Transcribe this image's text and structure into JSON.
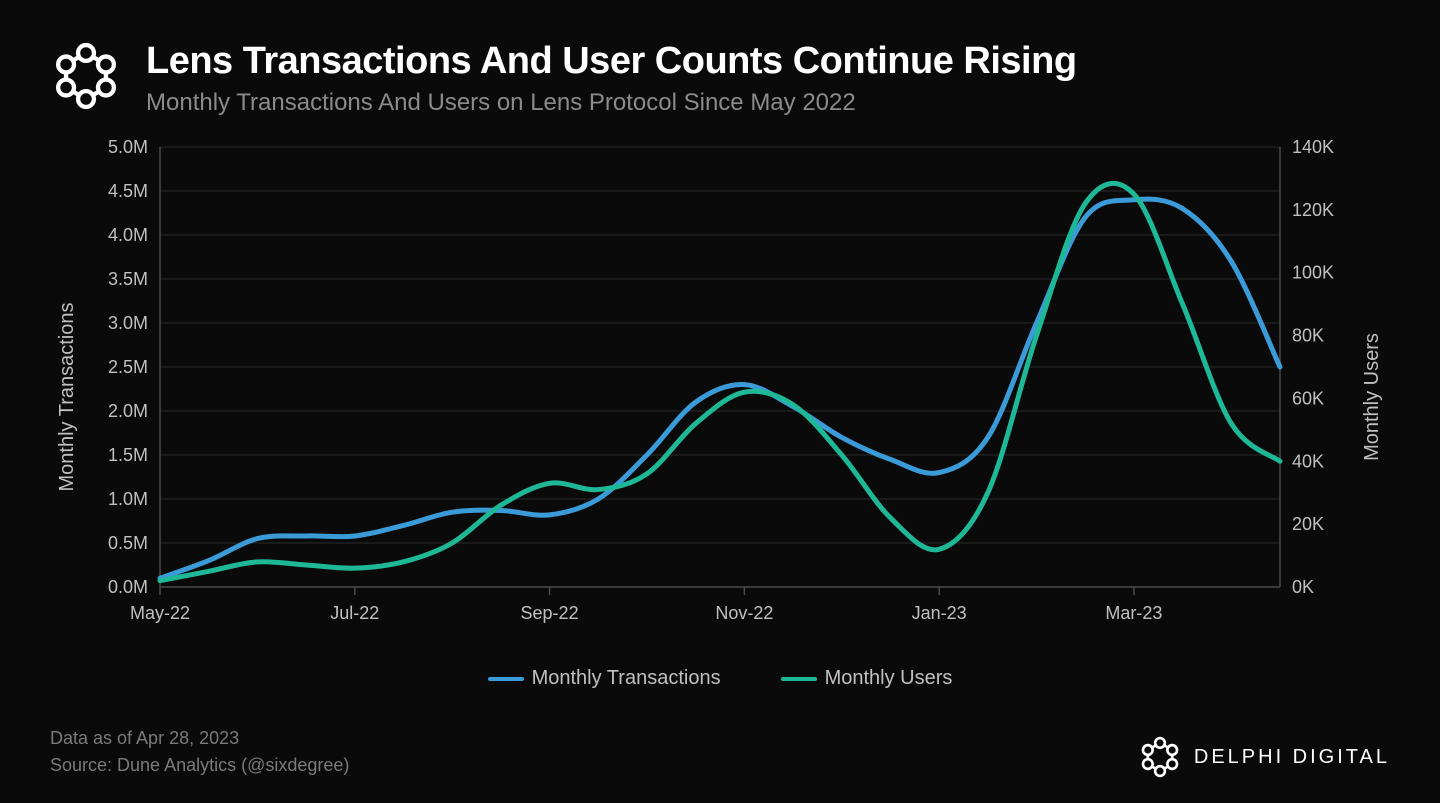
{
  "header": {
    "title": "Lens Transactions And User Counts Continue Rising",
    "subtitle": "Monthly Transactions And Users on Lens Protocol Since May 2022"
  },
  "chart": {
    "type": "line-dual-axis",
    "background_color": "#0a0a0a",
    "grid_color": "#2a2a2a",
    "axis_color": "#4a4a4a",
    "tick_color": "#c0c0c0",
    "tick_fontsize": 18,
    "line_width": 5,
    "y_left": {
      "label": "Monthly Transactions",
      "min": 0,
      "max": 5.0,
      "step": 0.5,
      "ticks": [
        "0.0M",
        "0.5M",
        "1.0M",
        "1.5M",
        "2.0M",
        "2.5M",
        "3.0M",
        "3.5M",
        "4.0M",
        "4.5M",
        "5.0M"
      ]
    },
    "y_right": {
      "label": "Monthly Users",
      "min": 0,
      "max": 140,
      "step": 20,
      "ticks": [
        "0K",
        "20K",
        "40K",
        "60K",
        "80K",
        "100K",
        "120K",
        "140K"
      ]
    },
    "x": {
      "labels": [
        "May-22",
        "Jul-22",
        "Sep-22",
        "Nov-22",
        "Jan-23",
        "Mar-23"
      ]
    },
    "series": [
      {
        "name": "Monthly Transactions",
        "color": "#3b9bd8",
        "axis": "left",
        "points": [
          [
            0.0,
            0.1
          ],
          [
            0.5,
            0.3
          ],
          [
            1.0,
            0.55
          ],
          [
            1.5,
            0.58
          ],
          [
            2.0,
            0.58
          ],
          [
            2.5,
            0.7
          ],
          [
            3.0,
            0.85
          ],
          [
            3.5,
            0.87
          ],
          [
            4.0,
            0.82
          ],
          [
            4.5,
            1.0
          ],
          [
            5.0,
            1.5
          ],
          [
            5.5,
            2.1
          ],
          [
            6.0,
            2.3
          ],
          [
            6.5,
            2.05
          ],
          [
            7.0,
            1.7
          ],
          [
            7.5,
            1.45
          ],
          [
            8.0,
            1.3
          ],
          [
            8.5,
            1.7
          ],
          [
            9.0,
            3.0
          ],
          [
            9.5,
            4.2
          ],
          [
            10.0,
            4.4
          ],
          [
            10.5,
            4.3
          ],
          [
            11.0,
            3.7
          ],
          [
            11.5,
            2.5
          ]
        ]
      },
      {
        "name": "Monthly Users",
        "color": "#1fb896",
        "axis": "right",
        "points": [
          [
            0.0,
            2
          ],
          [
            0.5,
            5
          ],
          [
            1.0,
            8
          ],
          [
            1.5,
            7
          ],
          [
            2.0,
            6
          ],
          [
            2.5,
            8
          ],
          [
            3.0,
            14
          ],
          [
            3.5,
            26
          ],
          [
            4.0,
            33
          ],
          [
            4.5,
            31
          ],
          [
            5.0,
            36
          ],
          [
            5.5,
            52
          ],
          [
            6.0,
            62
          ],
          [
            6.5,
            58
          ],
          [
            7.0,
            42
          ],
          [
            7.5,
            22
          ],
          [
            8.0,
            12
          ],
          [
            8.5,
            30
          ],
          [
            9.0,
            80
          ],
          [
            9.5,
            122
          ],
          [
            10.0,
            125
          ],
          [
            10.5,
            90
          ],
          [
            11.0,
            52
          ],
          [
            11.5,
            40
          ]
        ]
      }
    ],
    "legend": {
      "items": [
        "Monthly Transactions",
        "Monthly Users"
      ],
      "colors": [
        "#3b9bd8",
        "#1fb896"
      ]
    }
  },
  "footer": {
    "date_line": "Data as of Apr 28, 2023",
    "source_line": "Source: Dune Analytics (@sixdegree)",
    "brand": "DELPHI DIGITAL"
  },
  "logo_stroke": "#ffffff"
}
